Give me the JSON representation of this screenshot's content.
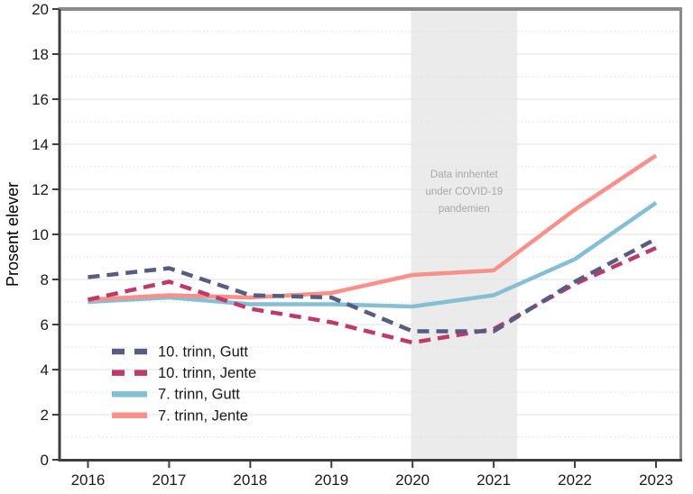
{
  "chart_data": {
    "type": "line",
    "title": "",
    "xlabel": "",
    "ylabel": "Prosent elever",
    "x": [
      2016,
      2017,
      2018,
      2019,
      2020,
      2021,
      2022,
      2023
    ],
    "xlim": [
      2015.65,
      2023.3
    ],
    "ylim": [
      0,
      20
    ],
    "yticks": [
      0,
      2,
      4,
      6,
      8,
      10,
      12,
      14,
      16,
      18,
      20
    ],
    "grid": {
      "major_color": "#E8E8E8",
      "minor_color": "#DEDEDE",
      "major_on_even": true,
      "minor_dotted_on_odd": true
    },
    "legend_position": "lower-left-inside",
    "series": [
      {
        "name": "10. trinn, Gutt",
        "color": "#575C82",
        "dash": true,
        "values": [
          8.1,
          8.5,
          7.3,
          7.2,
          5.7,
          5.7,
          7.9,
          9.8
        ]
      },
      {
        "name": "10. trinn, Jente",
        "color": "#BE3A68",
        "dash": true,
        "values": [
          7.1,
          7.9,
          6.7,
          6.1,
          5.2,
          5.8,
          7.8,
          9.4
        ]
      },
      {
        "name": "7. trinn, Gutt",
        "color": "#85BFD3",
        "dash": false,
        "values": [
          7.0,
          7.2,
          6.9,
          6.9,
          6.8,
          7.3,
          8.9,
          11.4
        ]
      },
      {
        "name": "7. trinn, Jente",
        "color": "#F9918A",
        "dash": false,
        "values": [
          7.1,
          7.3,
          7.2,
          7.4,
          8.2,
          8.4,
          11.1,
          13.5
        ]
      }
    ],
    "band": {
      "x_start": 2019.98,
      "x_end": 2021.29,
      "color": "#EBEBEB",
      "label": "Data innhentet under COVID-19 pandemien",
      "label_lines": [
        "Data innhentet",
        "under COVID-19",
        "pandemien"
      ],
      "label_color": "#A8A8A8"
    },
    "axis_colors": {
      "left_bottom_spine": "#3D3D3D",
      "top_right_spine": "#8A8A8A",
      "tick_label": "#1A1A1A"
    }
  }
}
